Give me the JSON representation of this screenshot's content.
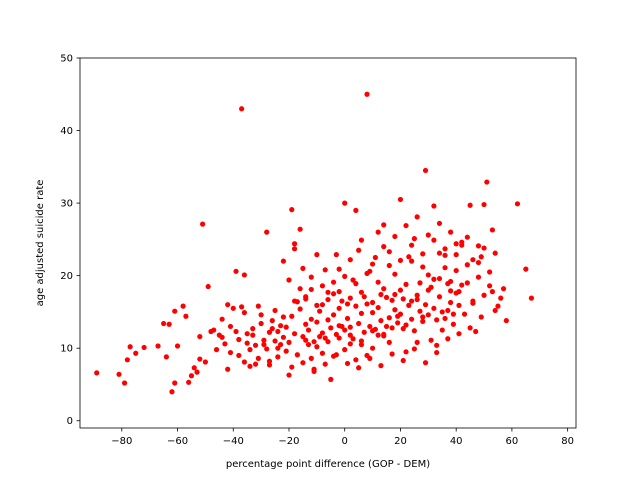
{
  "chart_data": {
    "type": "scatter",
    "title": "",
    "xlabel": "percentage point difference (GOP - DEM)",
    "ylabel": "age adjusted suicide rate",
    "xlim": [
      -95,
      83
    ],
    "ylim": [
      -1,
      50
    ],
    "xticks": [
      -80,
      -60,
      -40,
      -20,
      0,
      20,
      40,
      60,
      80
    ],
    "yticks": [
      0,
      10,
      20,
      30,
      40,
      50
    ],
    "grid": false,
    "legend": "none",
    "marker_color": "#ff0000",
    "series": [
      {
        "points": [
          [
            -89,
            6.6
          ],
          [
            -81,
            6.4
          ],
          [
            -79,
            5.2
          ],
          [
            -78,
            8.4
          ],
          [
            -77,
            10.2
          ],
          [
            -75,
            9.3
          ],
          [
            -72,
            10.1
          ],
          [
            -67,
            10.3
          ],
          [
            -65,
            13.4
          ],
          [
            -64,
            8.8
          ],
          [
            -63,
            13.3
          ],
          [
            -62,
            4.0
          ],
          [
            -61,
            15.1
          ],
          [
            -61,
            5.2
          ],
          [
            -60,
            10.3
          ],
          [
            -58,
            15.8
          ],
          [
            -57,
            14.4
          ],
          [
            -56,
            5.3
          ],
          [
            -55,
            6.2
          ],
          [
            -54,
            7.3
          ],
          [
            -53,
            6.7
          ],
          [
            -52,
            8.5
          ],
          [
            -51,
            27.1
          ],
          [
            -49,
            18.5
          ],
          [
            -48,
            12.3
          ],
          [
            -46,
            9.8
          ],
          [
            -44,
            11.5
          ],
          [
            -43,
            10.6
          ],
          [
            -42,
            7.1
          ],
          [
            -41,
            13.0
          ],
          [
            -40,
            15.5
          ],
          [
            -39,
            20.6
          ],
          [
            -38,
            9.0
          ],
          [
            -38,
            11.2
          ],
          [
            -37,
            43.0
          ],
          [
            -37,
            15.7
          ],
          [
            -36,
            20.1
          ],
          [
            -35,
            12.0
          ],
          [
            -34,
            9.8
          ],
          [
            -33,
            11.8
          ],
          [
            -32,
            7.8
          ],
          [
            -31,
            15.8
          ],
          [
            -30,
            13.4
          ],
          [
            -29,
            10.5
          ],
          [
            -28,
            26.0
          ],
          [
            -27,
            8.2
          ],
          [
            -26,
            12.7
          ],
          [
            -25,
            15.2
          ],
          [
            -24,
            12.3
          ],
          [
            -23,
            10.5
          ],
          [
            -22,
            14.3
          ],
          [
            -21,
            9.6
          ],
          [
            -20,
            6.3
          ],
          [
            -19,
            29.1
          ],
          [
            -18,
            23.7
          ],
          [
            -17,
            16.4
          ],
          [
            -16,
            26.4
          ],
          [
            -15,
            21.0
          ],
          [
            -14,
            13.3
          ],
          [
            -13,
            10.5
          ],
          [
            -12,
            18.1
          ],
          [
            -11,
            6.8
          ],
          [
            -10,
            22.9
          ],
          [
            -9,
            11.6
          ],
          [
            -8,
            16.0
          ],
          [
            -7,
            20.8
          ],
          [
            -6,
            13.9
          ],
          [
            -5,
            5.7
          ],
          [
            -4,
            19.1
          ],
          [
            -3,
            22.9
          ],
          [
            -2,
            15.5
          ],
          [
            -1,
            13.0
          ],
          [
            0,
            30.0
          ],
          [
            1,
            16.1
          ],
          [
            2,
            11.8
          ],
          [
            3,
            19.4
          ],
          [
            4,
            29.0
          ],
          [
            5,
            23.5
          ],
          [
            6,
            10.5
          ],
          [
            7,
            17.1
          ],
          [
            8,
            45.0
          ],
          [
            9,
            20.6
          ],
          [
            10,
            12.4
          ],
          [
            11,
            22.5
          ],
          [
            12,
            11.8
          ],
          [
            13,
            17.4
          ],
          [
            14,
            24.0
          ],
          [
            15,
            13.0
          ],
          [
            16,
            10.8
          ],
          [
            17,
            16.6
          ],
          [
            18,
            20.2
          ],
          [
            19,
            14.4
          ],
          [
            20,
            30.5
          ],
          [
            21,
            12.7
          ],
          [
            22,
            9.5
          ],
          [
            23,
            22.6
          ],
          [
            24,
            16.5
          ],
          [
            25,
            25.1
          ],
          [
            26,
            10.8
          ],
          [
            27,
            19.0
          ],
          [
            28,
            14.3
          ],
          [
            29,
            34.5
          ],
          [
            30,
            20.1
          ],
          [
            31,
            11.1
          ],
          [
            32,
            29.6
          ],
          [
            33,
            9.4
          ],
          [
            34,
            23.1
          ],
          [
            35,
            12.5
          ],
          [
            36,
            21.1
          ],
          [
            37,
            15.2
          ],
          [
            38,
            19.2
          ],
          [
            39,
            13.3
          ],
          [
            40,
            24.4
          ],
          [
            41,
            17.8
          ],
          [
            42,
            24.6
          ],
          [
            43,
            14.7
          ],
          [
            44,
            21.5
          ],
          [
            45,
            29.7
          ],
          [
            46,
            16.2
          ],
          [
            47,
            12.3
          ],
          [
            48,
            19.8
          ],
          [
            49,
            22.6
          ],
          [
            50,
            23.8
          ],
          [
            51,
            32.9
          ],
          [
            52,
            20.5
          ],
          [
            53,
            26.3
          ],
          [
            54,
            23.1
          ],
          [
            55,
            15.8
          ],
          [
            56,
            16.9
          ],
          [
            57,
            18.2
          ],
          [
            58,
            13.8
          ],
          [
            62,
            29.9
          ],
          [
            65,
            20.9
          ],
          [
            67,
            16.9
          ],
          [
            -33,
            12.7
          ],
          [
            -32,
            10.4
          ],
          [
            -30,
            14.6
          ],
          [
            -29,
            11.1
          ],
          [
            -28,
            9.9
          ],
          [
            -27,
            12.2
          ],
          [
            -26,
            13.8
          ],
          [
            -25,
            11.0
          ],
          [
            -24,
            10.0
          ],
          [
            -23,
            13.1
          ],
          [
            -22,
            11.5
          ],
          [
            -21,
            12.9
          ],
          [
            -20,
            10.8
          ],
          [
            -19,
            14.4
          ],
          [
            -18,
            12.0
          ],
          [
            -17,
            9.1
          ],
          [
            -16,
            15.4
          ],
          [
            -15,
            11.6
          ],
          [
            -14,
            16.8
          ],
          [
            -13,
            12.5
          ],
          [
            -12,
            14.0
          ],
          [
            -11,
            10.9
          ],
          [
            -10,
            13.6
          ],
          [
            -9,
            15.1
          ],
          [
            -8,
            12.1
          ],
          [
            -7,
            11.4
          ],
          [
            -6,
            17.7
          ],
          [
            -5,
            12.8
          ],
          [
            -4,
            14.6
          ],
          [
            -3,
            11.9
          ],
          [
            -2,
            13.1
          ],
          [
            -1,
            16.5
          ],
          [
            0,
            12.5
          ],
          [
            1,
            14.1
          ],
          [
            2,
            12.9
          ],
          [
            3,
            11.3
          ],
          [
            4,
            15.8
          ],
          [
            5,
            13.4
          ],
          [
            6,
            14.8
          ],
          [
            7,
            12.2
          ],
          [
            8,
            16.1
          ],
          [
            9,
            13.0
          ],
          [
            10,
            14.9
          ],
          [
            11,
            12.6
          ],
          [
            12,
            15.6
          ],
          [
            13,
            13.8
          ],
          [
            14,
            11.9
          ],
          [
            15,
            17.0
          ],
          [
            16,
            14.2
          ],
          [
            17,
            12.8
          ],
          [
            18,
            15.3
          ],
          [
            19,
            13.5
          ],
          [
            20,
            14.7
          ],
          [
            21,
            16.8
          ],
          [
            22,
            13.2
          ],
          [
            23,
            15.9
          ],
          [
            24,
            14.0
          ],
          [
            25,
            12.4
          ],
          [
            26,
            17.3
          ],
          [
            27,
            15.1
          ],
          [
            28,
            13.7
          ],
          [
            29,
            16.0
          ],
          [
            30,
            14.6
          ],
          [
            31,
            18.4
          ],
          [
            32,
            15.5
          ],
          [
            33,
            13.9
          ],
          [
            34,
            17.1
          ],
          [
            35,
            15.0
          ],
          [
            36,
            14.1
          ],
          [
            37,
            18.9
          ],
          [
            38,
            16.3
          ],
          [
            39,
            14.7
          ],
          [
            40,
            17.6
          ],
          [
            41,
            15.9
          ],
          [
            -14,
            11.1
          ],
          [
            -10,
            10.2
          ],
          [
            -6,
            10.9
          ],
          [
            -2,
            11.4
          ],
          [
            2,
            10.6
          ],
          [
            6,
            11.0
          ],
          [
            10,
            10.0
          ],
          [
            14,
            11.7
          ],
          [
            -12,
            8.6
          ],
          [
            -8,
            9.3
          ],
          [
            -4,
            8.9
          ],
          [
            0,
            9.8
          ],
          [
            4,
            8.4
          ],
          [
            8,
            9.0
          ],
          [
            -20,
            19.4
          ],
          [
            -16,
            18.2
          ],
          [
            -12,
            19.8
          ],
          [
            -8,
            18.6
          ],
          [
            -4,
            17.5
          ],
          [
            0,
            19.9
          ],
          [
            4,
            18.9
          ],
          [
            8,
            20.3
          ],
          [
            12,
            19.1
          ],
          [
            16,
            21.4
          ],
          [
            20,
            18.0
          ],
          [
            24,
            22.0
          ],
          [
            28,
            21.2
          ],
          [
            32,
            19.5
          ],
          [
            36,
            22.8
          ],
          [
            40,
            20.7
          ],
          [
            44,
            19.0
          ],
          [
            48,
            21.8
          ],
          [
            52,
            18.6
          ],
          [
            -18,
            16.5
          ],
          [
            -14,
            17.1
          ],
          [
            -10,
            15.9
          ],
          [
            -6,
            16.7
          ],
          [
            -2,
            17.8
          ],
          [
            2,
            16.9
          ],
          [
            6,
            17.7
          ],
          [
            10,
            16.3
          ],
          [
            14,
            18.2
          ],
          [
            18,
            17.4
          ],
          [
            22,
            18.8
          ],
          [
            26,
            16.7
          ],
          [
            30,
            18.0
          ],
          [
            34,
            19.6
          ],
          [
            38,
            17.9
          ],
          [
            42,
            18.7
          ],
          [
            46,
            16.5
          ],
          [
            50,
            17.3
          ],
          [
            54,
            15.2
          ],
          [
            -36,
            8.1
          ],
          [
            -34,
            7.5
          ],
          [
            -31,
            8.6
          ],
          [
            -27,
            7.7
          ],
          [
            -24,
            8.8
          ],
          [
            -19,
            7.4
          ],
          [
            -15,
            8.0
          ],
          [
            -11,
            7.1
          ],
          [
            -7,
            7.8
          ],
          [
            -3,
            9.1
          ],
          [
            1,
            7.9
          ],
          [
            5,
            7.3
          ],
          [
            9,
            8.6
          ],
          [
            13,
            7.6
          ],
          [
            17,
            9.2
          ],
          [
            21,
            8.3
          ],
          [
            25,
            9.9
          ],
          [
            29,
            8.0
          ],
          [
            33,
            10.4
          ],
          [
            37,
            11.3
          ],
          [
            41,
            12.0
          ],
          [
            45,
            12.8
          ],
          [
            49,
            14.3
          ],
          [
            53,
            17.8
          ],
          [
            -45,
            11.8
          ],
          [
            -47,
            12.5
          ],
          [
            -52,
            11.6
          ],
          [
            -50,
            8.1
          ],
          [
            -44,
            14.0
          ],
          [
            -41,
            9.4
          ],
          [
            -39,
            12.3
          ],
          [
            -35,
            10.7
          ],
          [
            -36,
            14.9
          ],
          [
            -42,
            16.0
          ],
          [
            14,
            27.0
          ],
          [
            18,
            25.4
          ],
          [
            22,
            26.9
          ],
          [
            26,
            28.1
          ],
          [
            30,
            25.6
          ],
          [
            34,
            27.2
          ],
          [
            38,
            26.0
          ],
          [
            42,
            24.2
          ],
          [
            46,
            22.2
          ],
          [
            50,
            29.8
          ],
          [
            16,
            23.3
          ],
          [
            20,
            22.1
          ],
          [
            24,
            24.2
          ],
          [
            28,
            23.0
          ],
          [
            32,
            24.9
          ],
          [
            36,
            23.7
          ],
          [
            40,
            22.9
          ],
          [
            44,
            25.3
          ],
          [
            48,
            24.1
          ],
          [
            -22,
            22.0
          ],
          [
            -18,
            24.4
          ],
          [
            -2,
            20.9
          ],
          [
            2,
            22.2
          ],
          [
            6,
            24.9
          ],
          [
            10,
            21.6
          ],
          [
            12,
            26.0
          ]
        ]
      }
    ]
  }
}
